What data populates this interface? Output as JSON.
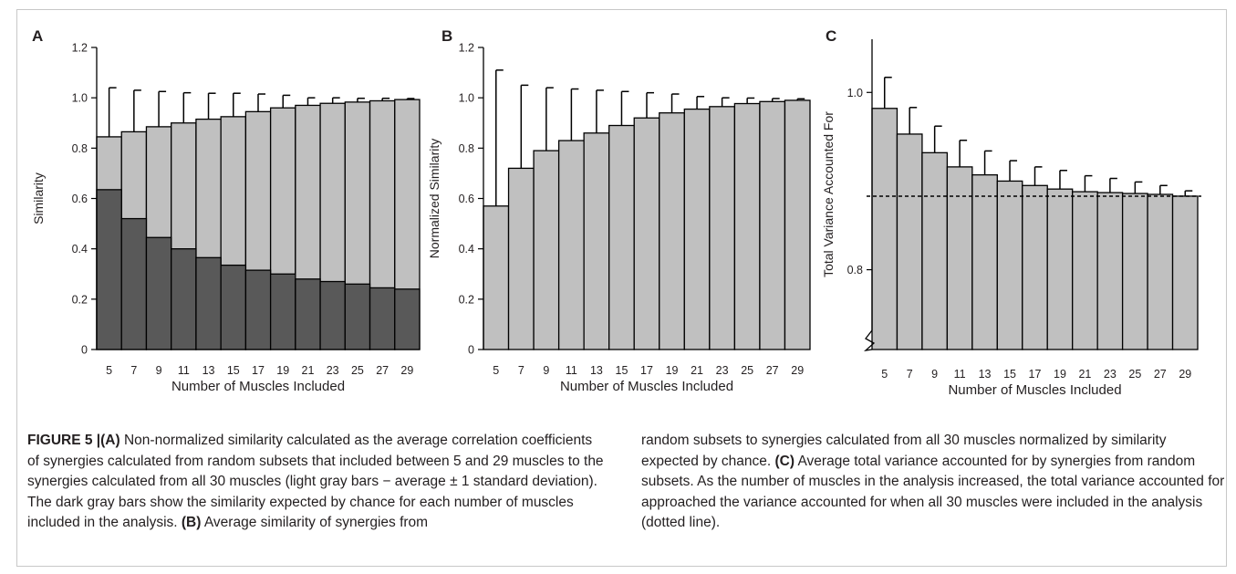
{
  "figure_label": "FIGURE 5 |",
  "caption": {
    "left": [
      {
        "text": "(A)",
        "bold": true
      },
      {
        "text": " Non-normalized similarity calculated as the average correlation coefficients of synergies calculated from random subsets that included between 5 and 29 muscles to the synergies calculated from all 30 muscles (light gray bars − average ± 1 standard deviation). The dark gray bars show the similarity expected by chance for each number of muscles included in the analysis. ",
        "bold": false
      },
      {
        "text": "(B)",
        "bold": true
      },
      {
        "text": " Average similarity of synergies from",
        "bold": false
      }
    ],
    "right": [
      {
        "text": "random subsets to synergies calculated from all 30 muscles normalized by similarity expected by chance. ",
        "bold": false
      },
      {
        "text": "(C)",
        "bold": true
      },
      {
        "text": " Average total variance accounted for by synergies from random subsets. As the number of muscles in the analysis increased, the total variance accounted for approached the variance accounted for when all 30 muscles were included in the analysis (dotted line).",
        "bold": false
      }
    ]
  },
  "colors": {
    "light_bar": "#c0c0c0",
    "dark_bar": "#595959",
    "stroke": "#000000",
    "text": "#231f20"
  },
  "chart_data": [
    {
      "panel": "A",
      "type": "bar",
      "xlabel": "Number of Muscles Included",
      "ylabel": "Similarity",
      "ylim": [
        0,
        1.2
      ],
      "yticks": [
        "0",
        "0.2",
        "0.4",
        "0.6",
        "0.8",
        "1.0",
        "1.2"
      ],
      "categories": [
        "5",
        "7",
        "9",
        "11",
        "13",
        "15",
        "17",
        "19",
        "21",
        "23",
        "25",
        "27",
        "29"
      ],
      "series": [
        {
          "role": "average",
          "values": [
            0.845,
            0.865,
            0.885,
            0.9,
            0.915,
            0.925,
            0.945,
            0.96,
            0.97,
            0.978,
            0.983,
            0.988,
            0.993
          ]
        },
        {
          "role": "chance",
          "values": [
            0.635,
            0.52,
            0.445,
            0.4,
            0.365,
            0.335,
            0.315,
            0.3,
            0.28,
            0.27,
            0.26,
            0.245,
            0.24
          ]
        }
      ],
      "error_plus": [
        0.195,
        0.165,
        0.14,
        0.12,
        0.103,
        0.093,
        0.07,
        0.05,
        0.03,
        0.022,
        0.015,
        0.01,
        0.004
      ]
    },
    {
      "panel": "B",
      "type": "bar",
      "xlabel": "Number of Muscles Included",
      "ylabel": "Normalized Similarity",
      "ylim": [
        0,
        1.2
      ],
      "yticks": [
        "0",
        "0.2",
        "0.4",
        "0.6",
        "0.8",
        "1.0",
        "1.2"
      ],
      "categories": [
        "5",
        "7",
        "9",
        "11",
        "13",
        "15",
        "17",
        "19",
        "21",
        "23",
        "25",
        "27",
        "29"
      ],
      "series": [
        {
          "role": "average",
          "values": [
            0.57,
            0.72,
            0.79,
            0.83,
            0.86,
            0.89,
            0.92,
            0.94,
            0.955,
            0.965,
            0.977,
            0.985,
            0.99
          ]
        }
      ],
      "error_plus": [
        0.54,
        0.33,
        0.25,
        0.205,
        0.17,
        0.135,
        0.1,
        0.075,
        0.05,
        0.035,
        0.022,
        0.012,
        0.006
      ]
    },
    {
      "panel": "C",
      "type": "bar",
      "xlabel": "Number of Muscles Included",
      "ylabel": "Total Variance Accounted For",
      "ylim": [
        0.71,
        1.06
      ],
      "yticks": [
        "0.8",
        "1.0"
      ],
      "ytick_values": [
        0.8,
        1.0
      ],
      "axis_break": true,
      "reference_line": 0.883,
      "categories": [
        "5",
        "7",
        "9",
        "11",
        "13",
        "15",
        "17",
        "19",
        "21",
        "23",
        "25",
        "27",
        "29"
      ],
      "series": [
        {
          "role": "average",
          "values": [
            0.982,
            0.953,
            0.932,
            0.916,
            0.907,
            0.9,
            0.895,
            0.891,
            0.888,
            0.887,
            0.886,
            0.885,
            0.883
          ]
        }
      ],
      "error_plus": [
        0.035,
        0.03,
        0.03,
        0.03,
        0.027,
        0.023,
        0.021,
        0.021,
        0.018,
        0.016,
        0.013,
        0.01,
        0.006
      ]
    }
  ]
}
